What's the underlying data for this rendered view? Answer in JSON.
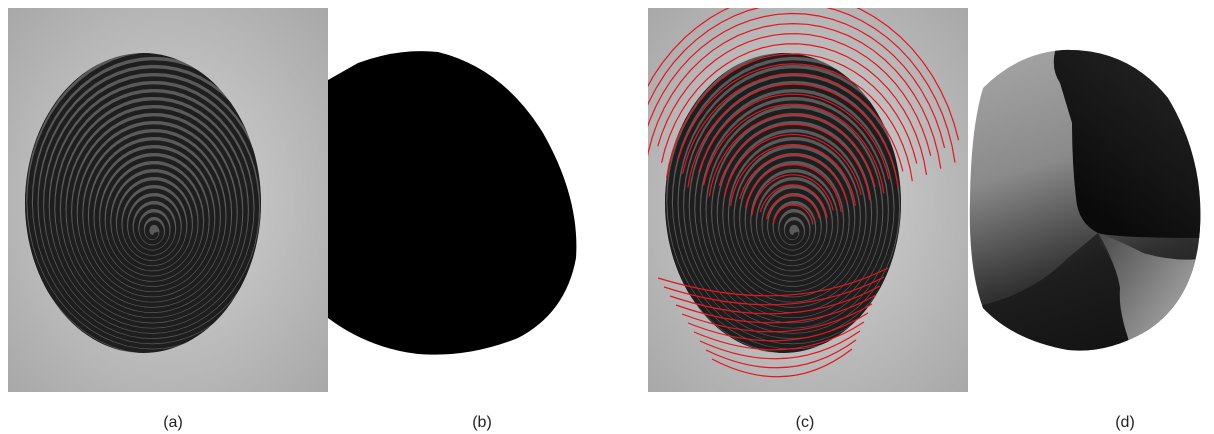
{
  "panels": [
    {
      "caption": "(a)",
      "content": "fingerprint-image"
    },
    {
      "caption": "(b)",
      "content": "segmentation-mask"
    },
    {
      "caption": "(c)",
      "content": "fingerprint-with-orientation-lines"
    },
    {
      "caption": "(d)",
      "content": "orientation-field-map"
    }
  ],
  "colors": {
    "background": "#c8c8c8",
    "ridge": "#2a2a2a",
    "mask": "#000000",
    "orientation_line": "#e8141e"
  }
}
